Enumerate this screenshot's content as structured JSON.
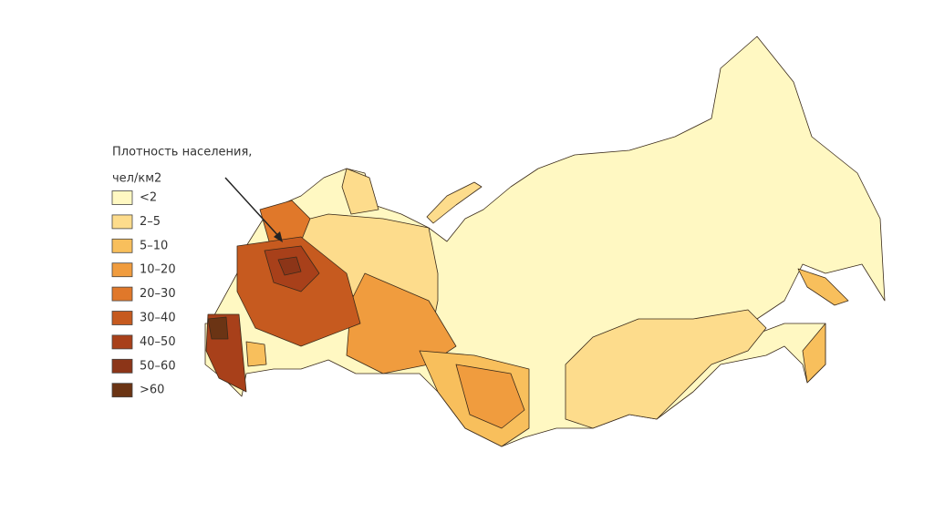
{
  "legend": {
    "title": "Плотность населения,",
    "unit": "чел/км2",
    "items": [
      {
        "label": "<2",
        "color": "#fff8c2"
      },
      {
        "label": "2–5",
        "color": "#fddc8c"
      },
      {
        "label": "5–10",
        "color": "#f8bf5c"
      },
      {
        "label": "10–20",
        "color": "#f09c3e"
      },
      {
        "label": "20–30",
        "color": "#e0782a"
      },
      {
        "label": "30–40",
        "color": "#c65a1f"
      },
      {
        "label": "40–50",
        "color": "#a8401a"
      },
      {
        "label": "50–60",
        "color": "#8c3518"
      },
      {
        "label": ">60",
        "color": "#6b3414"
      }
    ]
  }
}
